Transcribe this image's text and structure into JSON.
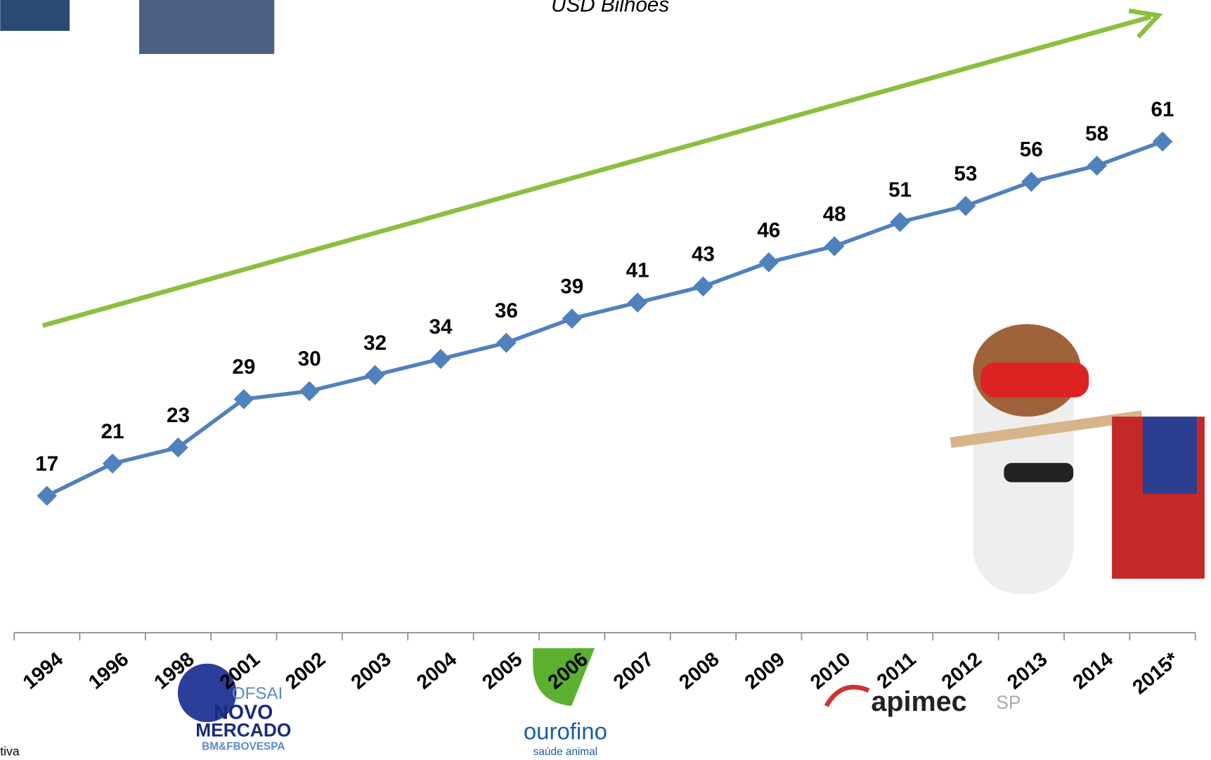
{
  "chart_data": {
    "type": "line",
    "subtitle": "USD Bilhões",
    "categories": [
      "1994",
      "1996",
      "1998",
      "2001",
      "2002",
      "2003",
      "2004",
      "2005",
      "2006",
      "2007",
      "2008",
      "2009",
      "2010",
      "2011",
      "2012",
      "2013",
      "2014",
      "2015*"
    ],
    "series": [
      {
        "name": "USD Bilhões",
        "color": "#4f81bd",
        "values": [
          17,
          21,
          23,
          29,
          30,
          32,
          34,
          36,
          39,
          41,
          43,
          46,
          48,
          51,
          53,
          56,
          58,
          61
        ]
      }
    ],
    "ylim": [
      0,
      78
    ],
    "grid": false,
    "trend_color": "#8cbf3f"
  },
  "footer": {
    "fragment": "tiva",
    "logos": [
      "OFSAI",
      "NOVO",
      "MERCADO",
      "BM&FBOVESPA",
      "ourofino",
      "saúde animal",
      "apimec",
      "SP"
    ]
  }
}
